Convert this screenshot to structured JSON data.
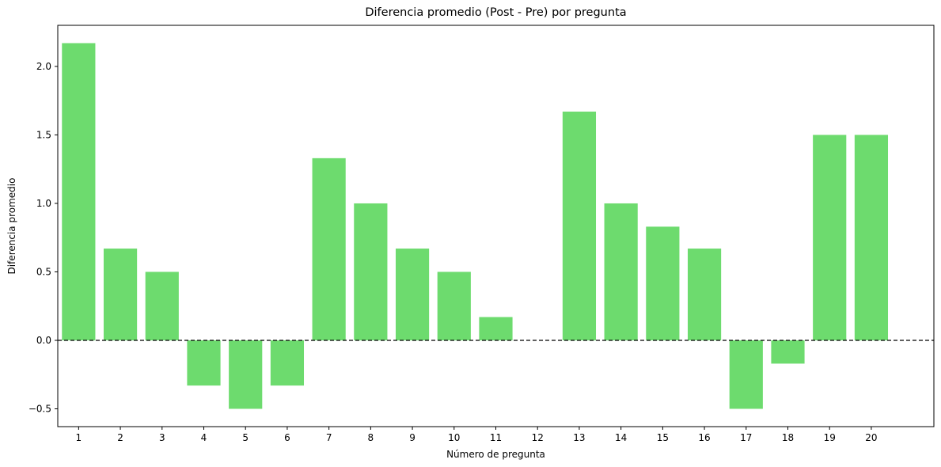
{
  "chart_data": {
    "type": "bar",
    "title": "Diferencia promedio (Post - Pre) por pregunta",
    "xlabel": "Número de pregunta",
    "ylabel": "Diferencia promedio",
    "categories": [
      1,
      2,
      3,
      4,
      5,
      6,
      7,
      8,
      9,
      10,
      11,
      12,
      13,
      14,
      15,
      16,
      17,
      18,
      19,
      20
    ],
    "values": [
      2.17,
      0.67,
      0.5,
      -0.33,
      -0.5,
      -0.33,
      1.33,
      1.0,
      0.67,
      0.5,
      0.17,
      0.0,
      1.67,
      1.0,
      0.83,
      0.67,
      -0.5,
      -0.17,
      1.5,
      1.5
    ],
    "ylim": [
      -0.63,
      2.3
    ],
    "yticks": [
      -0.5,
      0.0,
      0.5,
      1.0,
      1.5,
      2.0
    ],
    "ytick_labels": [
      "−0.5",
      "0.0",
      "0.5",
      "1.0",
      "1.5",
      "2.0"
    ],
    "xlim": [
      -0.5,
      20.5
    ],
    "bar_color": "#6ddb6e",
    "reference_line": {
      "y": 0.0,
      "style": "dashed",
      "color": "#000000"
    },
    "grid": false,
    "legend": "none"
  }
}
